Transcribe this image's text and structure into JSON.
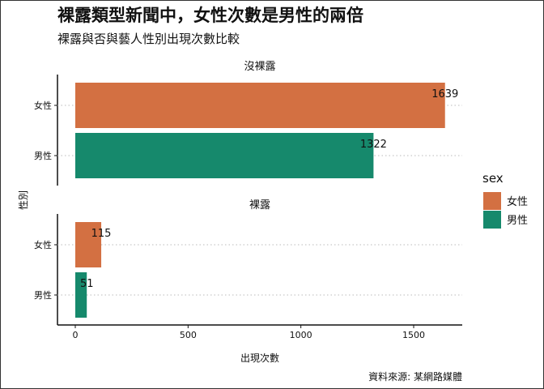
{
  "chart_data": {
    "type": "bar",
    "orientation": "horizontal",
    "title": "裸露類型新聞中，女性次數是男性的兩倍",
    "subtitle": "裸露與否與藝人性別出現次數比較",
    "xlabel": "出現次數",
    "ylabel": "性別",
    "caption": "資料來源: 某網路媒體",
    "xlim": [
      0,
      1700
    ],
    "xticks": [
      0,
      500,
      1000,
      1500
    ],
    "categories": [
      "女性",
      "男性"
    ],
    "grid": "dotted horizontal",
    "legend": {
      "title": "sex",
      "placement": "right",
      "entries": [
        {
          "label": "女性",
          "color": "#D37042"
        },
        {
          "label": "男性",
          "color": "#16896C"
        }
      ]
    },
    "facets": [
      {
        "label": "沒裸露",
        "values": [
          {
            "sex": "女性",
            "value": 1639
          },
          {
            "sex": "男性",
            "value": 1322
          }
        ]
      },
      {
        "label": "裸露",
        "values": [
          {
            "sex": "女性",
            "value": 115
          },
          {
            "sex": "男性",
            "value": 51
          }
        ]
      }
    ]
  }
}
